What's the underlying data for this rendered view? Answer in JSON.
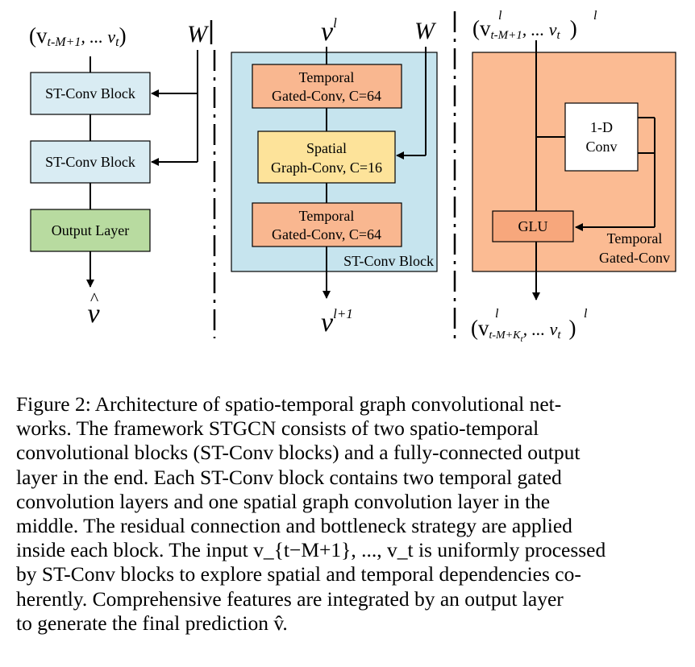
{
  "left_panel": {
    "input_label": "(v",
    "input_sub_first": "t-M+1",
    "input_mid": ", ... v",
    "input_sub_last": "t",
    "input_close": ")",
    "w_label": "W",
    "block1": "ST-Conv Block",
    "block2": "ST-Conv Block",
    "output_layer": "Output Layer",
    "output_symbol": "v",
    "output_hat": "^"
  },
  "middle_panel": {
    "input_symbol": "v",
    "input_sup": "l",
    "w_label": "W",
    "temporal1_line1": "Temporal",
    "temporal1_line2": "Gated-Conv, C=64",
    "spatial_line1": "Spatial",
    "spatial_line2": "Graph-Conv, C=16",
    "temporal2_line1": "Temporal",
    "temporal2_line2": "Gated-Conv, C=64",
    "block_label": "ST-Conv Block",
    "output_symbol": "v",
    "output_sup": "l+1"
  },
  "right_panel": {
    "input_open": "(v",
    "input_sub_first": "t-M+1",
    "input_mid": ", ... v",
    "input_sub_last": "t",
    "input_sup": "l",
    "input_close": ")",
    "conv_line1": "1-D",
    "conv_line2": "Conv",
    "glu_label": "GLU",
    "block_label_line1": "Temporal",
    "block_label_line2": "Gated-Conv",
    "output_open": "(v",
    "output_sub_first": "t-M+K",
    "output_sub_sub": "t",
    "output_mid": ", ... v",
    "output_sub_last": "t",
    "output_sup": "l",
    "output_close": ")"
  },
  "caption": {
    "lines": [
      "Figure 2: Architecture of spatio-temporal graph convolutional net-",
      "works.  The framework STGCN consists of two spatio-temporal",
      "convolutional blocks (ST-Conv blocks) and a fully-connected output",
      "layer in the end. Each ST-Conv block contains two temporal gated",
      "convolution layers and one spatial graph convolution layer in the",
      "middle. The residual connection and bottleneck strategy are applied",
      "inside each block. The input v_{t−M+1}, ..., v_t is uniformly processed",
      "by ST-Conv blocks to explore spatial and temporal dependencies co-",
      "herently. Comprehensive features are integrated by an output layer",
      "to generate the final prediction v̂."
    ]
  },
  "colors": {
    "st_block_fill": "#d9ecf3",
    "output_layer_fill": "#b8dba0",
    "temporal_fill": "#f9b790",
    "spatial_fill": "#fde39a",
    "middle_panel_fill": "#c6e4ee",
    "right_panel_fill": "#fbbb93",
    "glu_fill": "#f7a77c",
    "stroke": "#000000"
  }
}
